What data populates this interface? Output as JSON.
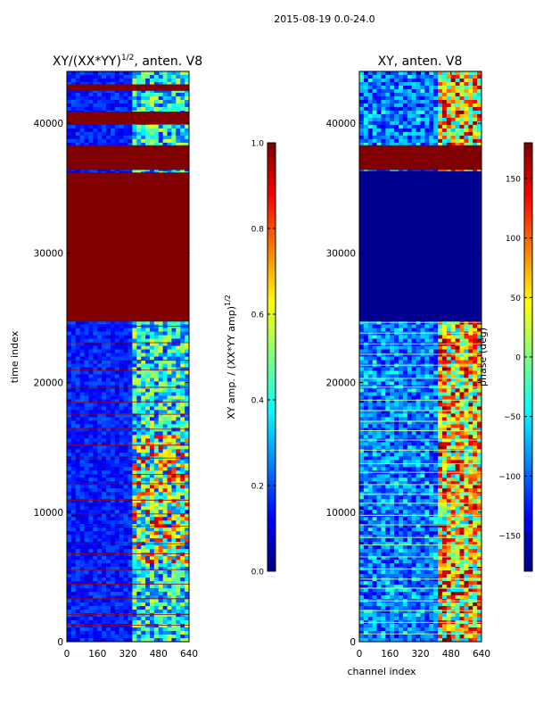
{
  "figure": {
    "suptitle": "2015-08-19 0.0-24.0"
  },
  "chart_data": [
    {
      "type": "heatmap",
      "title_main": "XY/(XX*YY)",
      "title_sup": "1/2",
      "title_rest": ", anten. V8",
      "xlabel": "",
      "ylabel": "time index",
      "xlim": [
        0,
        640
      ],
      "ylim": [
        0,
        44000
      ],
      "xticks": [
        0,
        160,
        320,
        480,
        640
      ],
      "yticks": [
        0,
        10000,
        20000,
        30000,
        40000
      ],
      "colorbar": {
        "label_main": "XY amp. / (XX*YY amp)",
        "label_sup": "1/2",
        "range": [
          0.0,
          1.0
        ],
        "ticks": [
          "0.0",
          "0.2",
          "0.4",
          "0.6",
          "0.8",
          "1.0"
        ],
        "tick_values": [
          0.0,
          0.2,
          0.4,
          0.6,
          0.8,
          1.0
        ]
      },
      "flagged_time_ranges": [
        [
          24700,
          36200
        ],
        [
          36400,
          38300
        ],
        [
          39900,
          40900
        ],
        [
          42500,
          43000
        ]
      ],
      "bright_channel_range": [
        340,
        640
      ]
    },
    {
      "type": "heatmap",
      "title": "XY, anten. V8",
      "xlabel": "channel index",
      "ylabel": "",
      "xlim": [
        0,
        640
      ],
      "ylim": [
        0,
        44000
      ],
      "xticks": [
        0,
        160,
        320,
        480,
        640
      ],
      "yticks": [
        0,
        10000,
        20000,
        30000,
        40000
      ],
      "colorbar": {
        "label": "phase (deg)",
        "range": [
          -180,
          180
        ],
        "ticks": [
          "150",
          "100",
          "50",
          "0",
          "−50",
          "−100",
          "−150"
        ],
        "tick_values": [
          150,
          100,
          50,
          0,
          -50,
          -100,
          -150
        ]
      },
      "low_phase_time_ranges": [
        [
          24700,
          36300
        ]
      ],
      "bright_channel_range": [
        390,
        640
      ]
    }
  ]
}
